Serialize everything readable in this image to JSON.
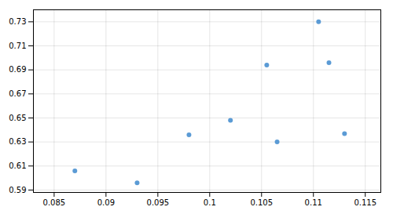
{
  "chart_data": {
    "type": "scatter",
    "x": [
      0.087,
      0.093,
      0.098,
      0.102,
      0.1055,
      0.1065,
      0.1105,
      0.1115,
      0.113
    ],
    "y": [
      0.606,
      0.596,
      0.636,
      0.648,
      0.694,
      0.63,
      0.73,
      0.696,
      0.637
    ],
    "color": "#5b9bd5",
    "xlim": [
      0.083,
      0.1165
    ],
    "ylim": [
      0.588,
      0.74
    ],
    "xticks": [
      0.085,
      0.09,
      0.095,
      0.1,
      0.105,
      0.11,
      0.115
    ],
    "yticks": [
      0.59,
      0.61,
      0.63,
      0.65,
      0.67,
      0.69,
      0.71,
      0.73
    ],
    "grid": true
  }
}
